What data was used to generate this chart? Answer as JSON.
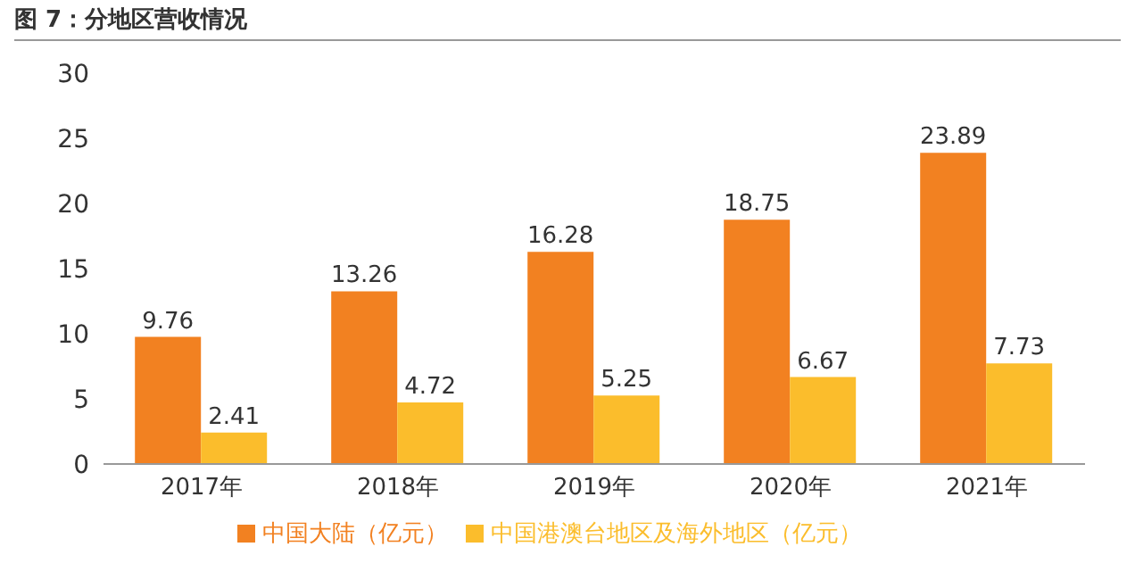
{
  "chart_data": {
    "type": "bar",
    "title": "图 7：分地区营收情况",
    "categories": [
      "2017年",
      "2018年",
      "2019年",
      "2020年",
      "2021年"
    ],
    "series": [
      {
        "name": "中国大陆（亿元）",
        "color": "#f28121",
        "values": [
          9.76,
          13.26,
          16.28,
          18.75,
          23.89
        ]
      },
      {
        "name": "中国港澳台地区及海外地区（亿元）",
        "color": "#fbbd2c",
        "values": [
          2.41,
          4.72,
          5.25,
          6.67,
          7.73
        ]
      }
    ],
    "ylim": [
      0,
      30
    ],
    "yticks": [
      0,
      5,
      10,
      15,
      20,
      25,
      30
    ],
    "grid": false,
    "legend": "bottom",
    "data_labels": true
  }
}
